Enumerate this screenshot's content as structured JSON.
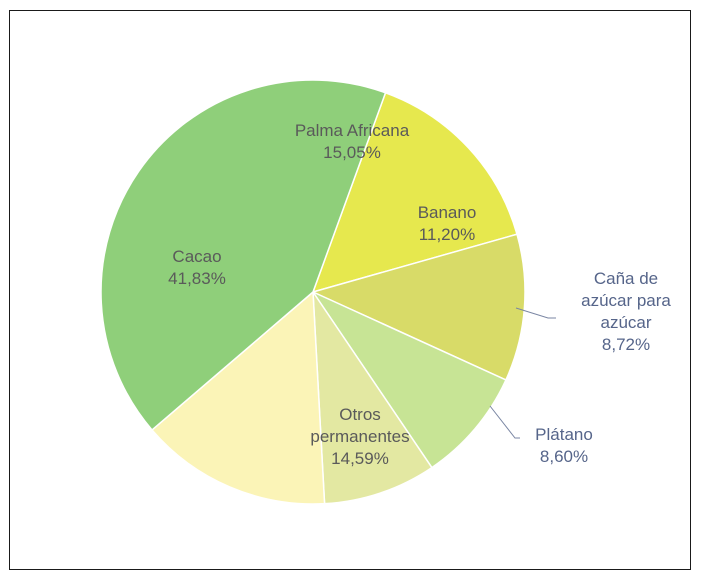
{
  "chart_data": {
    "type": "pie",
    "title": "",
    "slices": [
      {
        "label": "Palma Africana",
        "label_lines": [
          "Palma Africana"
        ],
        "value": 15.05,
        "value_text": "15,05%",
        "color": "#e6e84e"
      },
      {
        "label": "Banano",
        "label_lines": [
          "Banano"
        ],
        "value": 11.2,
        "value_text": "11,20%",
        "color": "#d8db68"
      },
      {
        "label": "Caña de azúcar para azúcar",
        "label_lines": [
          "Caña de",
          "azúcar para",
          "azúcar"
        ],
        "value": 8.72,
        "value_text": "8,72%",
        "color": "#c7e495"
      },
      {
        "label": "Plátano",
        "label_lines": [
          "Plátano"
        ],
        "value": 8.6,
        "value_text": "8,60%",
        "color": "#e3e8a2"
      },
      {
        "label": "Otros permanentes",
        "label_lines": [
          "Otros",
          "permanentes"
        ],
        "value": 14.59,
        "value_text": "14,59%",
        "color": "#fbf4b7"
      },
      {
        "label": "Cacao",
        "label_lines": [
          "Cacao"
        ],
        "value": 41.83,
        "value_text": "41,83%",
        "color": "#8fcf7a"
      }
    ]
  }
}
